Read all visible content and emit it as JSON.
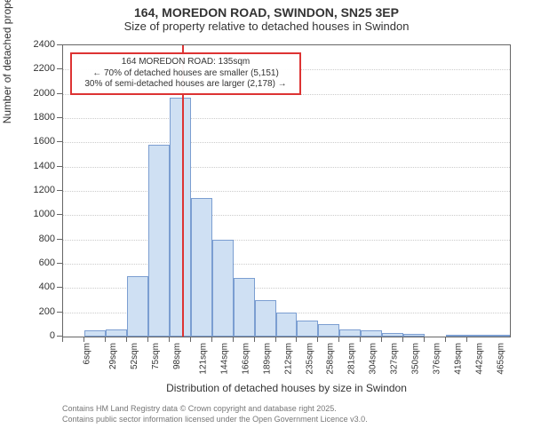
{
  "title": {
    "main": "164, MOREDON ROAD, SWINDON, SN25 3EP",
    "sub": "Size of property relative to detached houses in Swindon"
  },
  "axes": {
    "ylabel": "Number of detached properties",
    "xlabel": "Distribution of detached houses by size in Swindon",
    "ylim": [
      0,
      2400
    ],
    "yticks": [
      0,
      200,
      400,
      600,
      800,
      1000,
      1200,
      1400,
      1600,
      1800,
      2000,
      2200,
      2400
    ],
    "xticks": [
      "6sqm",
      "29sqm",
      "52sqm",
      "75sqm",
      "98sqm",
      "121sqm",
      "144sqm",
      "166sqm",
      "189sqm",
      "212sqm",
      "235sqm",
      "258sqm",
      "281sqm",
      "304sqm",
      "327sqm",
      "350sqm",
      "376sqm",
      "419sqm",
      "442sqm",
      "465sqm"
    ]
  },
  "chart": {
    "type": "histogram",
    "bar_fill": "#cfe0f3",
    "bar_stroke": "#7b9ed1",
    "background": "#ffffff",
    "grid_color": "#cccccc",
    "border_color": "#666666",
    "values": [
      0,
      50,
      60,
      500,
      1580,
      1970,
      1140,
      800,
      480,
      300,
      200,
      130,
      100,
      60,
      50,
      30,
      25,
      0,
      10,
      5,
      3
    ]
  },
  "marker": {
    "color": "#dd3333",
    "x_sqm": 135,
    "lines": {
      "l1": "164 MOREDON ROAD: 135sqm",
      "l2": "← 70% of detached houses are smaller (5,151)",
      "l3": "30% of semi-detached houses are larger (2,178) →"
    }
  },
  "footer": {
    "l1": "Contains HM Land Registry data © Crown copyright and database right 2025.",
    "l2": "Contains public sector information licensed under the Open Government Licence v3.0."
  }
}
